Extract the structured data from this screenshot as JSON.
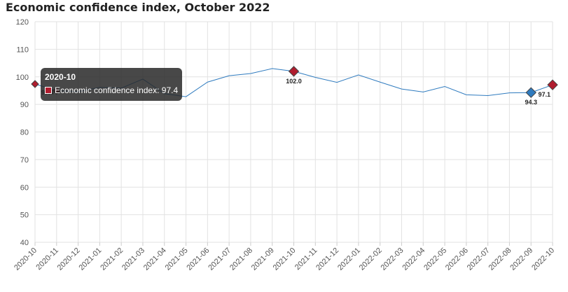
{
  "header": {
    "title": "Economic confidence index, October 2022"
  },
  "chart_data": {
    "type": "line",
    "categories": [
      "2020-10",
      "2020-11",
      "2020-12",
      "2021-01",
      "2021-02",
      "2021-03",
      "2021-04",
      "2021-05",
      "2021-06",
      "2021-07",
      "2021-08",
      "2021-09",
      "2021-10",
      "2021-11",
      "2021-12",
      "2022-01",
      "2022-02",
      "2022-03",
      "2022-04",
      "2022-05",
      "2022-06",
      "2022-07",
      "2022-08",
      "2022-09",
      "2022-10"
    ],
    "series": [
      {
        "name": "Economic confidence index",
        "values": [
          97.4,
          95.0,
          94.6,
          96.2,
          95.9,
          99.2,
          93.9,
          92.8,
          98.1,
          100.4,
          101.2,
          103.0,
          102.0,
          99.8,
          98.0,
          100.7,
          98.1,
          95.6,
          94.5,
          96.5,
          93.5,
          93.2,
          94.2,
          94.3,
          97.1
        ]
      }
    ],
    "highlighted_points": [
      {
        "category": "2020-10",
        "label": "97.4",
        "color": "#b01c2e"
      },
      {
        "category": "2020-11",
        "label": "",
        "color": "#b01c2e"
      },
      {
        "category": "2021-10",
        "label": "102.0",
        "color": "#b01c2e"
      },
      {
        "category": "2022-09",
        "label": "94.3",
        "color": "#2f7bbf"
      },
      {
        "category": "2022-10",
        "label": "97.1",
        "color": "#b01c2e"
      }
    ],
    "y_ticks": [
      40,
      50,
      60,
      70,
      80,
      90,
      100,
      110,
      120
    ],
    "ylim": [
      40,
      120
    ],
    "xlabel": "",
    "ylabel": "",
    "grid": true,
    "line_color": "#2f7bbf",
    "tooltip": {
      "title": "2020-10",
      "series": "Economic confidence index",
      "value": "97.4",
      "swatch_color": "#b01c2e"
    }
  }
}
